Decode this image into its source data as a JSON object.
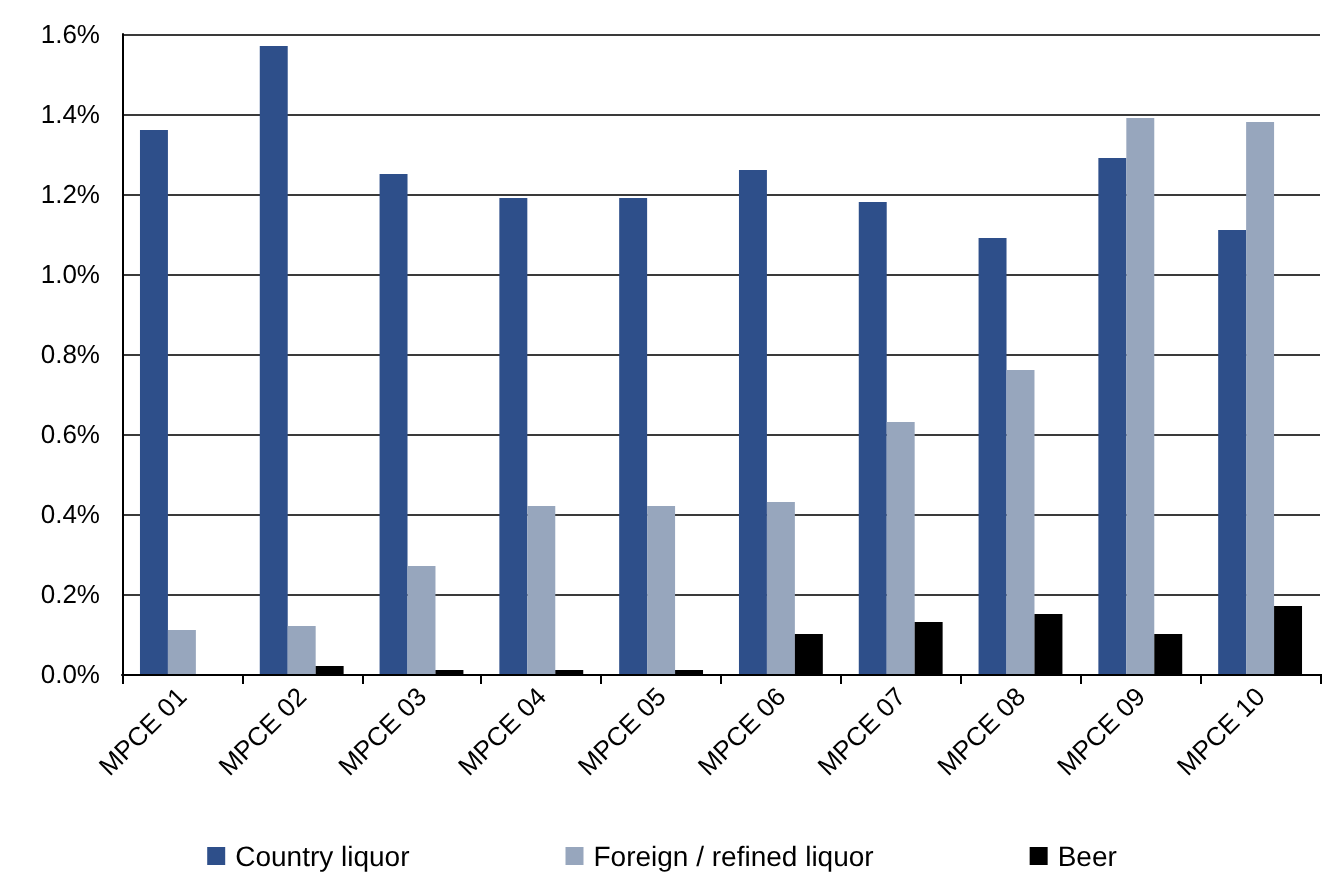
{
  "chart_data": {
    "type": "bar",
    "categories": [
      "MPCE 01",
      "MPCE 02",
      "MPCE 03",
      "MPCE 04",
      "MPCE 05",
      "MPCE 06",
      "MPCE 07",
      "MPCE 08",
      "MPCE 09",
      "MPCE 10"
    ],
    "series": [
      {
        "name": "Country liquor",
        "color": "#2e4f8a",
        "values": [
          1.36,
          1.57,
          1.25,
          1.19,
          1.19,
          1.26,
          1.18,
          1.09,
          1.29,
          1.11
        ]
      },
      {
        "name": "Foreign / refined liquor",
        "color": "#97a6bd",
        "values": [
          0.11,
          0.12,
          0.27,
          0.42,
          0.42,
          0.43,
          0.63,
          0.76,
          1.39,
          1.38
        ]
      },
      {
        "name": "Beer",
        "color": "#000000",
        "values": [
          0,
          0.02,
          0.01,
          0.01,
          0.01,
          0.1,
          0.13,
          0.15,
          0.1,
          0.17
        ]
      }
    ],
    "ylim": [
      0,
      1.6
    ],
    "yticks": [
      {
        "value": 0,
        "label": "0.0%"
      },
      {
        "value": 0.2,
        "label": "0.2%"
      },
      {
        "value": 0.4,
        "label": "0.4%"
      },
      {
        "value": 0.6,
        "label": "0.6%"
      },
      {
        "value": 0.8,
        "label": "0.8%"
      },
      {
        "value": 1.0,
        "label": "1.0%"
      },
      {
        "value": 1.2,
        "label": "1.2%"
      },
      {
        "value": 1.4,
        "label": "1.4%"
      },
      {
        "value": 1.6,
        "label": "1.6%"
      }
    ],
    "grid": "y",
    "legend": "bottom"
  }
}
